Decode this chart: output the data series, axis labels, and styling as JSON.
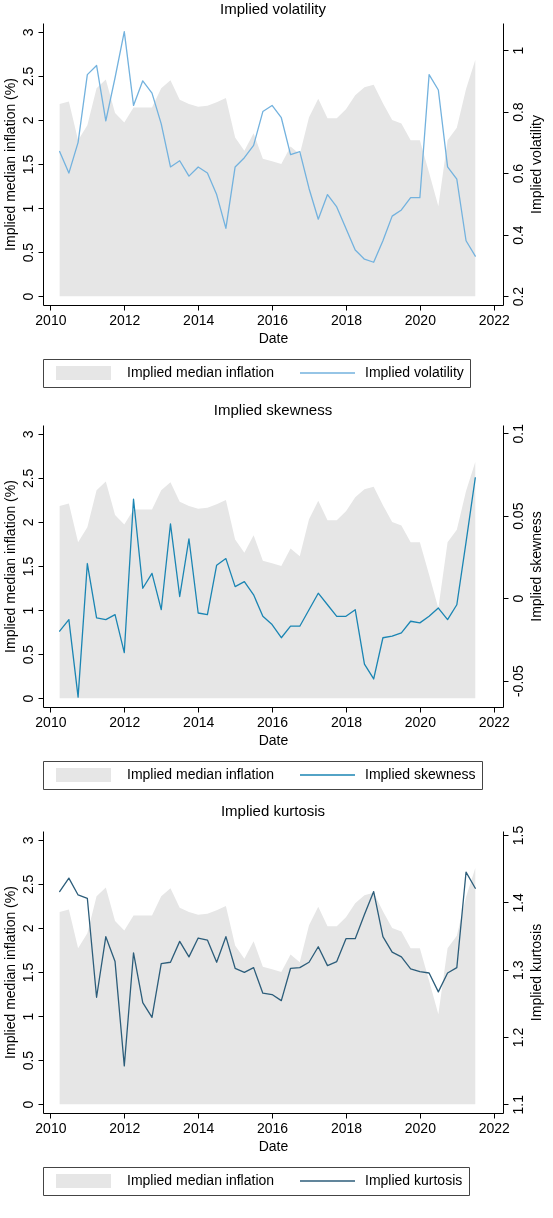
{
  "chart_data": [
    {
      "type": "area",
      "title": "Implied volatility",
      "xlabel": "Date",
      "ylabel": "Implied median inflation (%)",
      "y2label": "Implied volatility",
      "x": [
        2010.25,
        2010.5,
        2010.75,
        2011,
        2011.25,
        2011.5,
        2011.75,
        2012,
        2012.25,
        2012.5,
        2012.75,
        2013,
        2013.25,
        2013.5,
        2013.75,
        2014,
        2014.25,
        2014.5,
        2014.75,
        2015,
        2015.25,
        2015.5,
        2015.75,
        2016,
        2016.25,
        2016.5,
        2016.75,
        2017,
        2017.25,
        2017.5,
        2017.75,
        2018,
        2018.25,
        2018.5,
        2018.75,
        2019,
        2019.25,
        2019.5,
        2019.75,
        2020,
        2020.25,
        2020.5,
        2020.75,
        2021,
        2021.25,
        2021.5
      ],
      "series": [
        {
          "name": "Implied median inflation",
          "color": "#e6e6e6",
          "values": [
            2.18,
            2.21,
            1.77,
            1.94,
            2.36,
            2.46,
            2.08,
            1.97,
            2.14,
            2.14,
            2.14,
            2.36,
            2.45,
            2.23,
            2.18,
            2.15,
            2.16,
            2.2,
            2.25,
            1.8,
            1.65,
            1.85,
            1.56,
            1.53,
            1.5,
            1.7,
            1.61,
            2.03,
            2.24,
            2.02,
            2.02,
            2.12,
            2.28,
            2.37,
            2.4,
            2.19,
            2.0,
            1.96,
            1.77,
            1.77,
            1.4,
            1.02,
            1.77,
            1.91,
            2.35,
            2.68
          ]
        },
        {
          "name": "Implied volatility",
          "type": "line",
          "axis": "y2",
          "color": "#73b2de",
          "values": [
            0.67,
            0.6,
            0.7,
            0.92,
            0.95,
            0.77,
            0.91,
            1.06,
            0.82,
            0.9,
            0.86,
            0.76,
            0.62,
            0.64,
            0.59,
            0.62,
            0.6,
            0.53,
            0.42,
            0.62,
            0.65,
            0.69,
            0.8,
            0.82,
            0.78,
            0.66,
            0.67,
            0.55,
            0.45,
            0.53,
            0.49,
            0.42,
            0.35,
            0.32,
            0.31,
            0.38,
            0.46,
            0.48,
            0.52,
            0.52,
            0.92,
            0.87,
            0.62,
            0.58,
            0.38,
            0.33
          ]
        }
      ],
      "xlim": [
        2009.8,
        2022.25
      ],
      "xticks": [
        2010,
        2012,
        2014,
        2016,
        2018,
        2020,
        2022
      ],
      "ylim": [
        -0.1,
        3.1
      ],
      "yticks": [
        0,
        0.5,
        1,
        1.5,
        2,
        2.5,
        3
      ],
      "y2lim": [
        0.171,
        1.088
      ],
      "y2ticks": [
        0.2,
        0.4,
        0.6,
        0.8,
        1
      ],
      "legend": "bottom"
    },
    {
      "type": "area",
      "title": "Implied skewness",
      "xlabel": "Date",
      "ylabel": "Implied median inflation (%)",
      "y2label": "Implied skewness",
      "x": [
        2010.25,
        2010.5,
        2010.75,
        2011,
        2011.25,
        2011.5,
        2011.75,
        2012,
        2012.25,
        2012.5,
        2012.75,
        2013,
        2013.25,
        2013.5,
        2013.75,
        2014,
        2014.25,
        2014.5,
        2014.75,
        2015,
        2015.25,
        2015.5,
        2015.75,
        2016,
        2016.25,
        2016.5,
        2016.75,
        2017,
        2017.25,
        2017.5,
        2017.75,
        2018,
        2018.25,
        2018.5,
        2018.75,
        2019,
        2019.25,
        2019.5,
        2019.75,
        2020,
        2020.25,
        2020.5,
        2020.75,
        2021,
        2021.25,
        2021.5
      ],
      "series": [
        {
          "name": "Implied median inflation",
          "color": "#e6e6e6",
          "values": [
            2.18,
            2.21,
            1.77,
            1.94,
            2.36,
            2.46,
            2.08,
            1.97,
            2.14,
            2.14,
            2.14,
            2.36,
            2.45,
            2.23,
            2.18,
            2.15,
            2.16,
            2.2,
            2.25,
            1.8,
            1.65,
            1.85,
            1.56,
            1.53,
            1.5,
            1.7,
            1.61,
            2.03,
            2.24,
            2.02,
            2.02,
            2.12,
            2.28,
            2.37,
            2.4,
            2.19,
            2.0,
            1.96,
            1.77,
            1.77,
            1.4,
            1.02,
            1.77,
            1.91,
            2.35,
            2.68
          ]
        },
        {
          "name": "Implied skewness",
          "type": "line",
          "axis": "y2",
          "color": "#1a85b3",
          "values": [
            -0.02,
            -0.013,
            -0.06,
            0.021,
            -0.012,
            -0.013,
            -0.01,
            -0.033,
            0.06,
            0.006,
            0.015,
            -0.007,
            0.045,
            0.001,
            0.036,
            -0.009,
            -0.01,
            0.02,
            0.024,
            0.007,
            0.01,
            0.002,
            -0.011,
            -0.016,
            -0.024,
            -0.017,
            -0.017,
            -0.007,
            0.003,
            -0.004,
            -0.011,
            -0.011,
            -0.007,
            -0.04,
            -0.049,
            -0.024,
            -0.023,
            -0.021,
            -0.014,
            -0.015,
            -0.011,
            -0.006,
            -0.013,
            -0.004,
            0.034,
            0.073
          ]
        }
      ],
      "xlim": [
        2009.8,
        2022.25
      ],
      "xticks": [
        2010,
        2012,
        2014,
        2016,
        2018,
        2020,
        2022
      ],
      "ylim": [
        -0.1,
        3.1
      ],
      "yticks": [
        0,
        0.5,
        1,
        1.5,
        2,
        2.5,
        3
      ],
      "y2lim": [
        -0.066,
        0.105
      ],
      "y2ticks": [
        -0.05,
        0,
        0.05,
        0.1
      ],
      "legend": "bottom"
    },
    {
      "type": "area",
      "title": "Implied kurtosis",
      "xlabel": "Date",
      "ylabel": "Implied median inflation (%)",
      "y2label": "Implied kurtosis",
      "x": [
        2010.25,
        2010.5,
        2010.75,
        2011,
        2011.25,
        2011.5,
        2011.75,
        2012,
        2012.25,
        2012.5,
        2012.75,
        2013,
        2013.25,
        2013.5,
        2013.75,
        2014,
        2014.25,
        2014.5,
        2014.75,
        2015,
        2015.25,
        2015.5,
        2015.75,
        2016,
        2016.25,
        2016.5,
        2016.75,
        2017,
        2017.25,
        2017.5,
        2017.75,
        2018,
        2018.25,
        2018.5,
        2018.75,
        2019,
        2019.25,
        2019.5,
        2019.75,
        2020,
        2020.25,
        2020.5,
        2020.75,
        2021,
        2021.25,
        2021.5
      ],
      "series": [
        {
          "name": "Implied median inflation",
          "color": "#e6e6e6",
          "values": [
            2.18,
            2.21,
            1.77,
            1.94,
            2.36,
            2.46,
            2.08,
            1.97,
            2.14,
            2.14,
            2.14,
            2.36,
            2.45,
            2.23,
            2.18,
            2.15,
            2.16,
            2.2,
            2.25,
            1.8,
            1.65,
            1.85,
            1.56,
            1.53,
            1.5,
            1.7,
            1.61,
            2.03,
            2.24,
            2.02,
            2.02,
            2.12,
            2.28,
            2.37,
            2.4,
            2.19,
            2.0,
            1.96,
            1.77,
            1.77,
            1.4,
            1.02,
            1.77,
            1.91,
            2.35,
            2.68
          ]
        },
        {
          "name": "Implied kurtosis",
          "type": "line",
          "axis": "y2",
          "color": "#2c5d7a",
          "values": [
            1.416,
            1.436,
            1.411,
            1.406,
            1.259,
            1.349,
            1.312,
            1.157,
            1.325,
            1.251,
            1.229,
            1.309,
            1.311,
            1.342,
            1.319,
            1.347,
            1.344,
            1.311,
            1.349,
            1.302,
            1.296,
            1.303,
            1.265,
            1.263,
            1.254,
            1.302,
            1.303,
            1.311,
            1.334,
            1.306,
            1.312,
            1.346,
            1.346,
            1.382,
            1.416,
            1.349,
            1.326,
            1.319,
            1.301,
            1.297,
            1.295,
            1.267,
            1.295,
            1.303,
            1.445,
            1.421
          ]
        }
      ],
      "xlim": [
        2009.8,
        2022.25
      ],
      "xticks": [
        2010,
        2012,
        2014,
        2016,
        2018,
        2020,
        2022
      ],
      "ylim": [
        -0.1,
        3.1
      ],
      "yticks": [
        0,
        0.5,
        1,
        1.5,
        2,
        2.5,
        3
      ],
      "y2lim": [
        1.087,
        1.506
      ],
      "y2ticks": [
        1.1,
        1.2,
        1.3,
        1.4,
        1.5
      ],
      "legend": "bottom"
    }
  ]
}
